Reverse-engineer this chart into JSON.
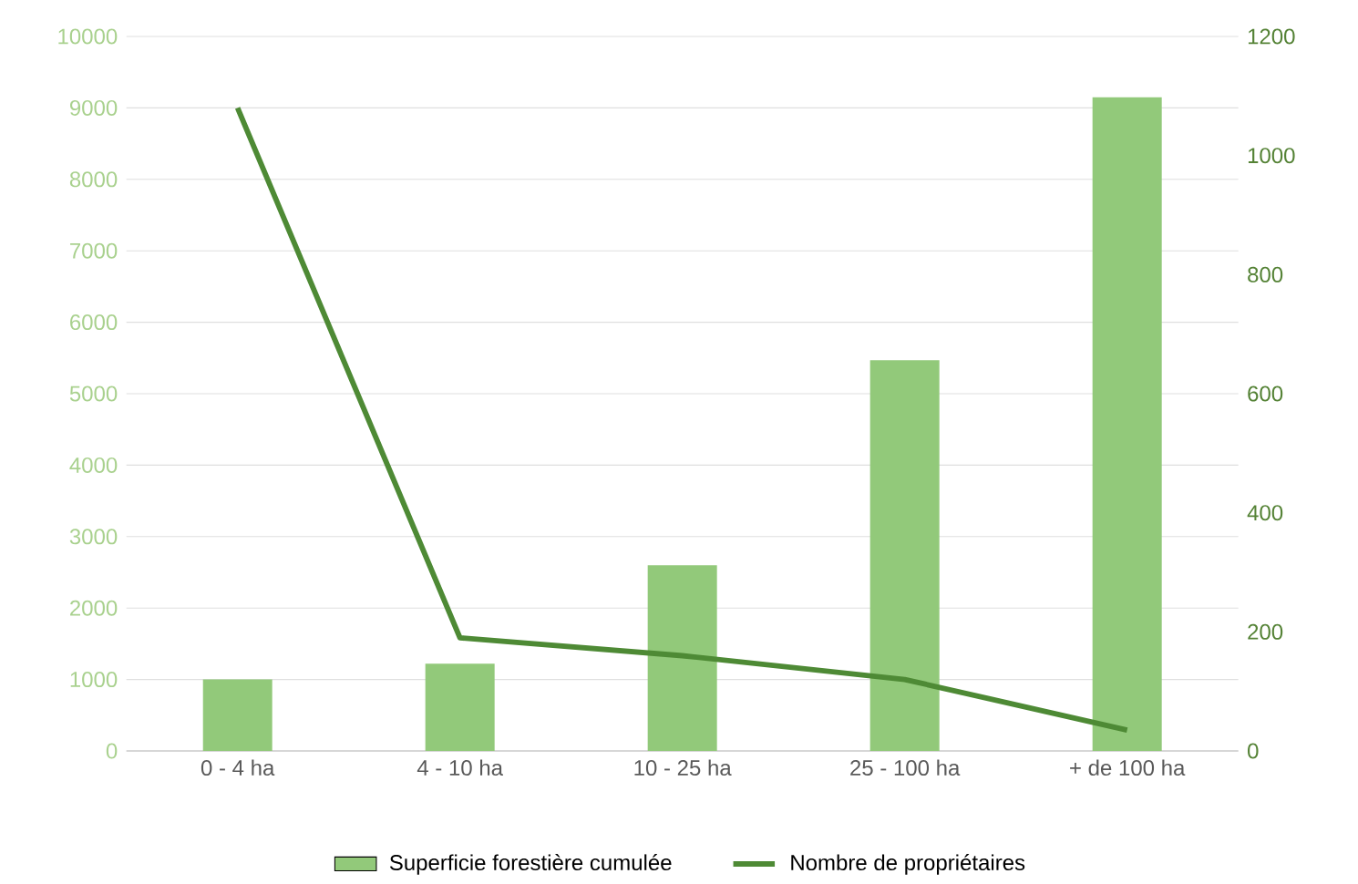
{
  "chart_data": {
    "type": "bar",
    "categories": [
      "0 - 4 ha",
      "4 - 10 ha",
      "10 - 25 ha",
      "25 - 100 ha",
      "+ de 100 ha"
    ],
    "series": [
      {
        "name": "Superficie forestière cumulée",
        "color": "#92c97a",
        "values": [
          1000,
          1220,
          2600,
          5470,
          9150
        ]
      },
      {
        "name": "Nombre de propriétaires",
        "type": "line",
        "axis": "y2",
        "color": "#4e8a35",
        "values": [
          1080,
          190,
          160,
          120,
          35
        ]
      }
    ],
    "ylim": [
      0,
      10000
    ],
    "yticks": [
      0,
      1000,
      2000,
      3000,
      4000,
      5000,
      6000,
      7000,
      8000,
      9000,
      10000
    ],
    "y2lim": [
      0,
      1200
    ],
    "y2ticks": [
      0,
      200,
      400,
      600,
      800,
      1000,
      1200
    ],
    "grid": "y",
    "legend": "bottom"
  }
}
